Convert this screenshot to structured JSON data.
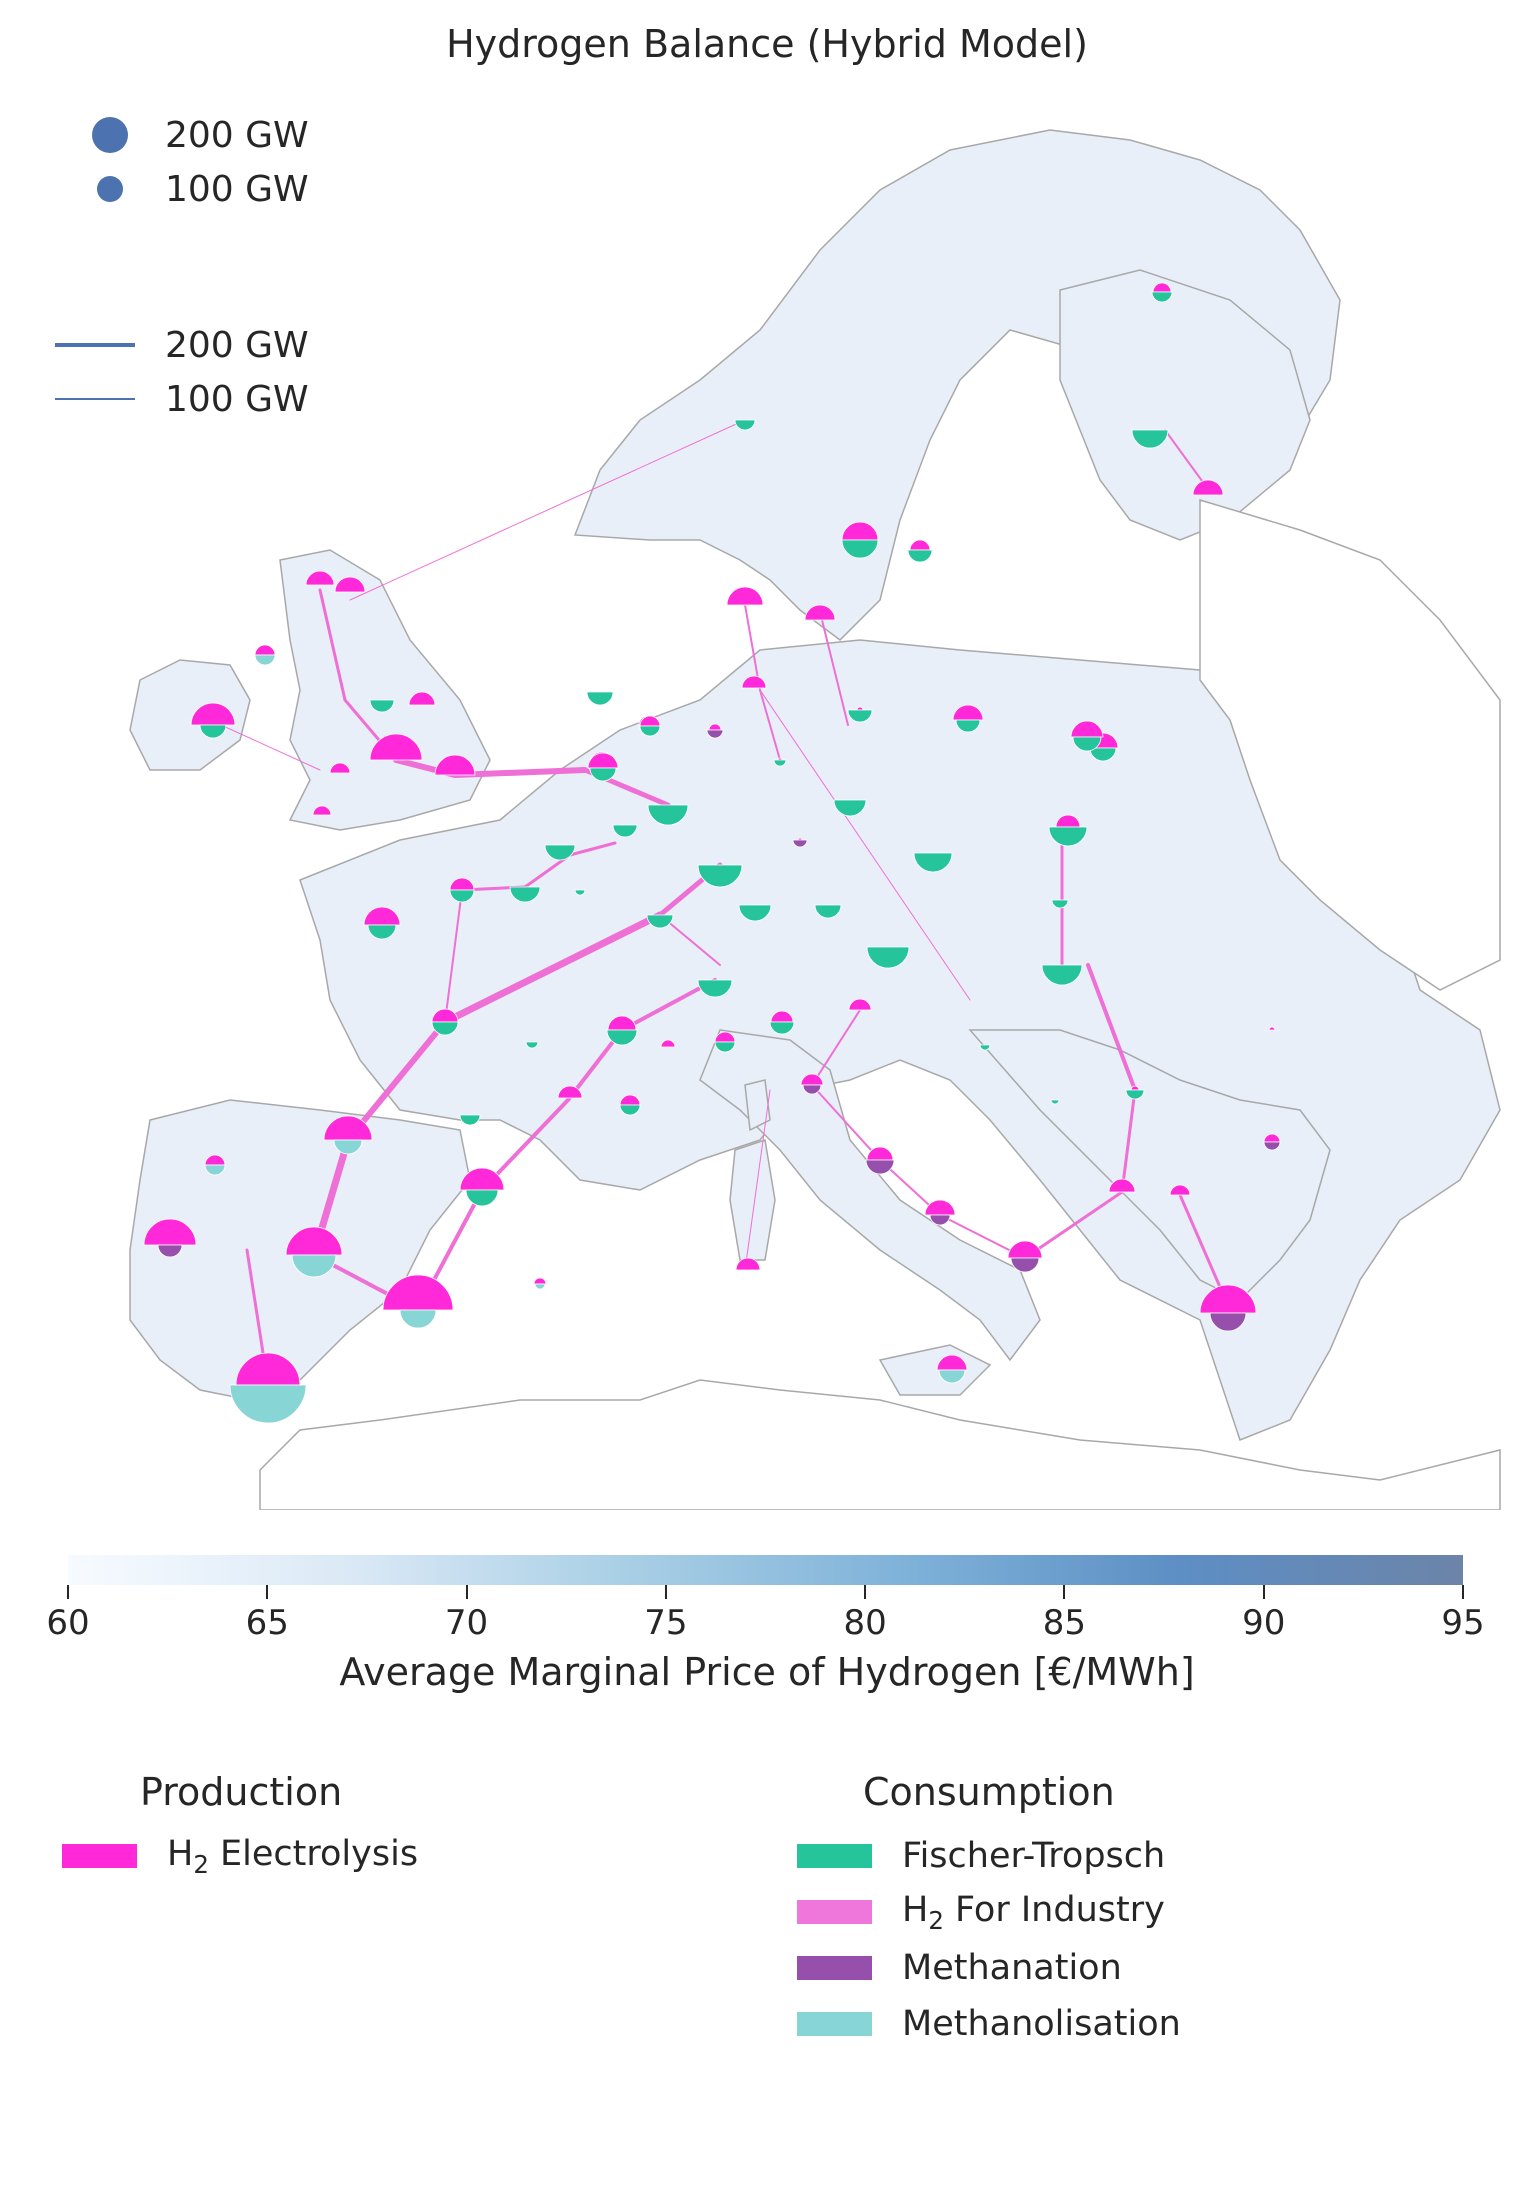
{
  "title": "Hydrogen Balance (Hybrid Model)",
  "size_legend": [
    {
      "label": "200 GW",
      "kind": "bus"
    },
    {
      "label": "100 GW",
      "kind": "bus"
    }
  ],
  "line_legend": [
    {
      "label": "200 GW",
      "kind": "flow"
    },
    {
      "label": "100 GW",
      "kind": "flow"
    }
  ],
  "colorbar": {
    "label": "Average Marginal Price of Hydrogen [€/MWh]",
    "ticks": [
      "60",
      "65",
      "70",
      "75",
      "80",
      "85",
      "90",
      "95"
    ],
    "range": [
      60,
      95
    ]
  },
  "production": {
    "heading": "Production",
    "items": [
      {
        "name_main": "H",
        "name_sub": "2",
        "name_rest": " Electrolysis",
        "color": "#ff29d9"
      }
    ]
  },
  "consumption": {
    "heading": "Consumption",
    "items": [
      {
        "name_main": "Fischer-Tropsch",
        "name_sub": "",
        "name_rest": "",
        "color": "#25c49a"
      },
      {
        "name_main": "H",
        "name_sub": "2",
        "name_rest": " For Industry",
        "color": "#ef77db"
      },
      {
        "name_main": "Methanation",
        "name_sub": "",
        "name_rest": "",
        "color": "#9650ab"
      },
      {
        "name_main": "Methanolisation",
        "name_sub": "",
        "name_rest": "",
        "color": "#88d5d5"
      }
    ]
  },
  "colors": {
    "electrolysis": "#ff29d9",
    "fischer_tropsch": "#25c49a",
    "industry": "#ef77db",
    "methanation": "#9650ab",
    "methanolisation": "#88d5d5",
    "flow": "#ee6fd6",
    "land": "#e8eef8",
    "border": "#a3a3a3"
  }
}
